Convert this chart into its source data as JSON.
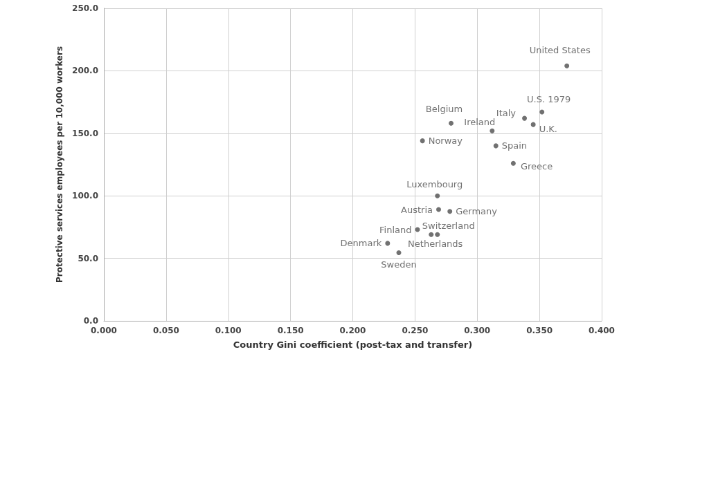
{
  "chart_data": {
    "type": "scatter",
    "xlabel": "Country Gini coefficient (post-tax and transfer)",
    "ylabel": "Protective services employees per 10,000 workers",
    "xlim": [
      0,
      0.4
    ],
    "ylim": [
      0,
      250
    ],
    "xticks": [
      {
        "value": 0,
        "label": "0.000"
      },
      {
        "value": 0.05,
        "label": "0.050"
      },
      {
        "value": 0.1,
        "label": "0.100"
      },
      {
        "value": 0.15,
        "label": "0.150"
      },
      {
        "value": 0.2,
        "label": "0.200"
      },
      {
        "value": 0.25,
        "label": "0.250"
      },
      {
        "value": 0.3,
        "label": "0.300"
      },
      {
        "value": 0.35,
        "label": "0.350"
      },
      {
        "value": 0.4,
        "label": "0.400"
      }
    ],
    "yticks": [
      {
        "value": 0,
        "label": "0.0"
      },
      {
        "value": 50,
        "label": "50.0"
      },
      {
        "value": 100,
        "label": "100.0"
      },
      {
        "value": 150,
        "label": "150.0"
      },
      {
        "value": 200,
        "label": "200.0"
      },
      {
        "value": 250,
        "label": "250.0"
      }
    ],
    "grid": true,
    "legend": false,
    "marker": "circle",
    "series": [
      {
        "name": "United States",
        "color": "#4d4d4d",
        "x": [
          0.372
        ],
        "values": [
          204
        ]
      },
      {
        "name": "U.S. 1979",
        "color": "#4d4d4d",
        "x": [
          0.352
        ],
        "values": [
          167
        ]
      },
      {
        "name": "Italy",
        "color": "#4d4d4d",
        "x": [
          0.338
        ],
        "values": [
          162
        ]
      },
      {
        "name": "U.K.",
        "color": "#4d4d4d",
        "x": [
          0.345
        ],
        "values": [
          157
        ]
      },
      {
        "name": "Belgium",
        "color": "#4d4d4d",
        "x": [
          0.279
        ],
        "values": [
          158
        ]
      },
      {
        "name": "Ireland",
        "color": "#4d4d4d",
        "x": [
          0.312
        ],
        "values": [
          152
        ]
      },
      {
        "name": "Norway",
        "color": "#4d4d4d",
        "x": [
          0.256
        ],
        "values": [
          144
        ]
      },
      {
        "name": "Spain",
        "color": "#4d4d4d",
        "x": [
          0.315
        ],
        "values": [
          140
        ]
      },
      {
        "name": "Greece",
        "color": "#4d4d4d",
        "x": [
          0.329
        ],
        "values": [
          126
        ]
      },
      {
        "name": "Luxembourg",
        "color": "#4d4d4d",
        "x": [
          0.268
        ],
        "values": [
          100
        ]
      },
      {
        "name": "Austria",
        "color": "#4d4d4d",
        "x": [
          0.269
        ],
        "values": [
          89
        ]
      },
      {
        "name": "Germany",
        "color": "#4d4d4d",
        "x": [
          0.278
        ],
        "values": [
          87.5
        ]
      },
      {
        "name": "Finland",
        "color": "#4d4d4d",
        "x": [
          0.252
        ],
        "values": [
          73
        ]
      },
      {
        "name": "Switzerland",
        "color": "#4d4d4d",
        "x": [
          0.268
        ],
        "values": [
          69
        ]
      },
      {
        "name": "Netherlands",
        "color": "#4d4d4d",
        "x": [
          0.263
        ],
        "values": [
          69
        ]
      },
      {
        "name": "Denmark",
        "color": "#4d4d4d",
        "x": [
          0.228
        ],
        "values": [
          62
        ]
      },
      {
        "name": "Sweden",
        "color": "#4d4d4d",
        "x": [
          0.237
        ],
        "values": [
          54.5
        ]
      }
    ]
  }
}
